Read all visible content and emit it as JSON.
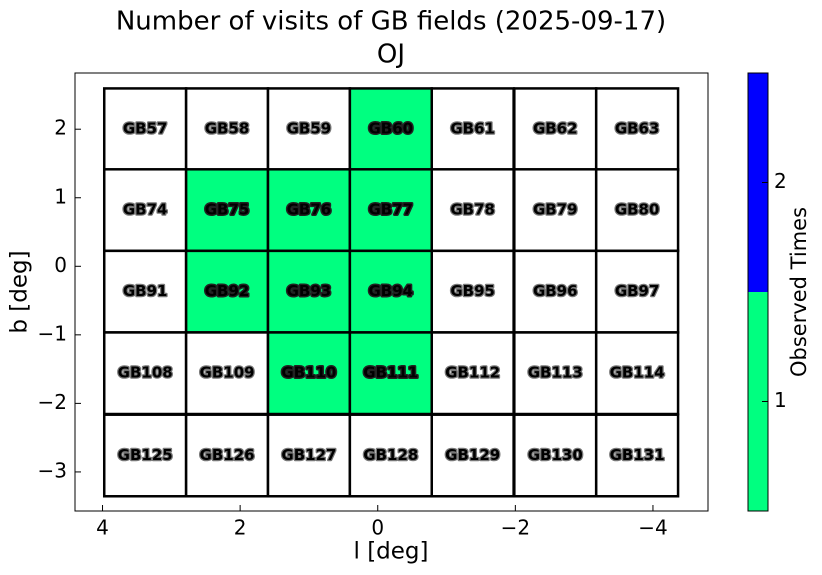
{
  "chart_data": {
    "type": "field-grid",
    "title": "Number of visits of GB fields (2025-09-17)",
    "subtitle": "OJ",
    "x_label": "l [deg]",
    "y_label": "b [deg]",
    "xlim": [
      4.4,
      -4.8
    ],
    "ylim": [
      -3.57,
      2.82
    ],
    "xticks": [
      4,
      2,
      0,
      {
        "value": -2,
        "label": "−2"
      },
      {
        "value": -4,
        "label": "−4"
      }
    ],
    "yticks": [
      2,
      1,
      0,
      {
        "value": -1,
        "label": "−1"
      },
      {
        "value": -2,
        "label": "−2"
      },
      {
        "value": -3,
        "label": "−3"
      }
    ],
    "cell_size": 1.19,
    "under_color": "#ffffff",
    "labels": [
      "GB57",
      "GB58",
      "GB59",
      "GB60",
      "GB61",
      "GB62",
      "GB63",
      "GB74",
      "GB75",
      "GB76",
      "GB77",
      "GB78",
      "GB79",
      "GB80",
      "GB91",
      "GB92",
      "GB93",
      "GB94",
      "GB95",
      "GB96",
      "GB97",
      "GB108",
      "GB109",
      "GB110",
      "GB111",
      "GB112",
      "GB113",
      "GB114",
      "GB125",
      "GB126",
      "GB127",
      "GB128",
      "GB129",
      "GB130",
      "GB131"
    ],
    "x": [
      3.38,
      2.19,
      1.0,
      -0.19,
      -1.38,
      -2.58,
      -3.77,
      3.38,
      2.19,
      1.0,
      -0.19,
      -1.38,
      -2.58,
      -3.77,
      3.38,
      2.19,
      1.0,
      -0.19,
      -1.38,
      -2.58,
      -3.77,
      3.38,
      2.19,
      1.0,
      -0.19,
      -1.38,
      -2.58,
      -3.77,
      3.38,
      2.19,
      1.0,
      -0.19,
      -1.38,
      -2.58,
      -3.77
    ],
    "y": [
      2.0,
      2.0,
      2.0,
      2.0,
      2.0,
      2.0,
      2.0,
      0.82,
      0.82,
      0.82,
      0.82,
      0.82,
      0.82,
      0.82,
      -0.37,
      -0.37,
      -0.37,
      -0.37,
      -0.37,
      -0.37,
      -0.37,
      -1.56,
      -1.56,
      -1.56,
      -1.56,
      -1.56,
      -1.56,
      -1.56,
      -2.76,
      -2.76,
      -2.76,
      -2.76,
      -2.76,
      -2.76,
      -2.76
    ],
    "values": [
      0,
      0,
      0,
      1,
      0,
      0,
      0,
      0,
      1,
      1,
      1,
      0,
      0,
      0,
      0,
      1,
      1,
      1,
      0,
      0,
      0,
      0,
      0,
      1,
      1,
      0,
      0,
      0,
      0,
      0,
      0,
      0,
      0,
      0,
      0
    ],
    "colorbar": {
      "label": "Observed Times",
      "clim": [
        0.5,
        2.5
      ],
      "ticks": [
        1,
        2
      ],
      "colors": [
        {
          "value": 1,
          "color": "#00ff80"
        },
        {
          "value": 2,
          "color": "#0000ff"
        }
      ]
    }
  }
}
